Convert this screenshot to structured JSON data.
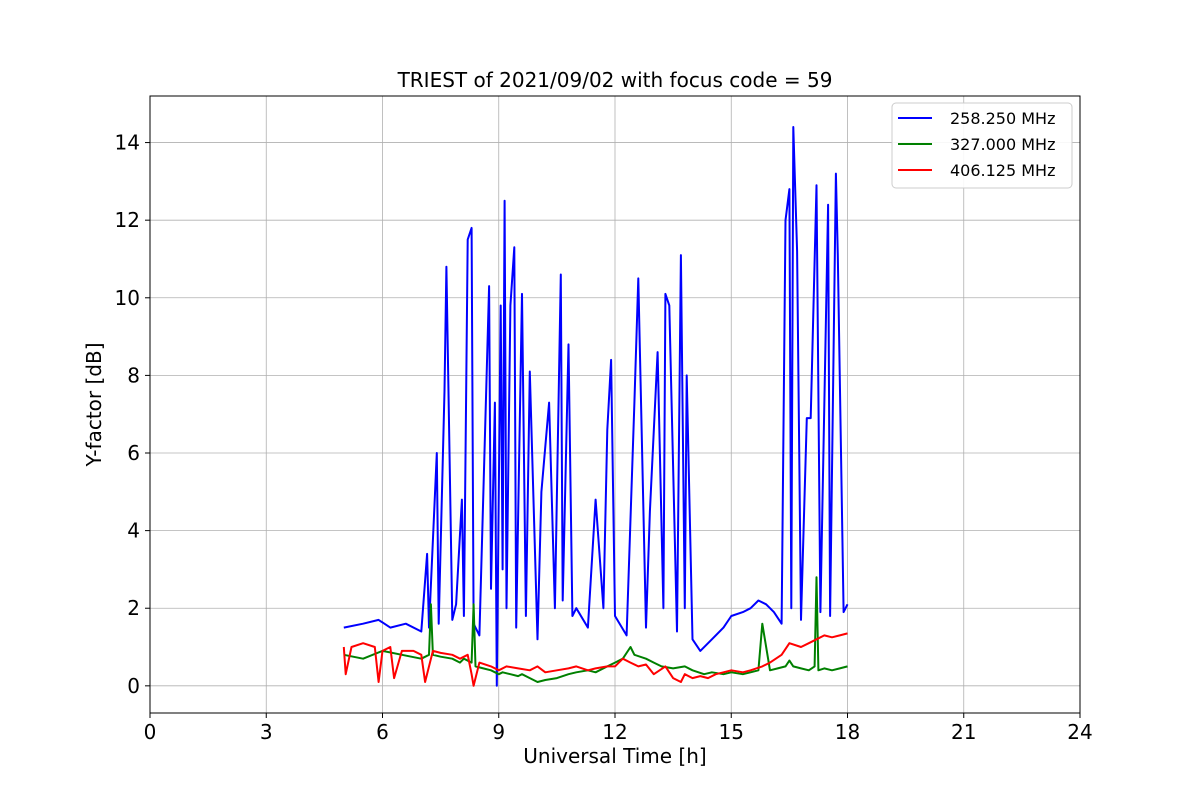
{
  "chart_data": {
    "type": "line",
    "title": "TRIEST of 2021/09/02 with focus code = 59",
    "xlabel": "Universal Time [h]",
    "ylabel": "Y-factor [dB]",
    "xlim": [
      0,
      24
    ],
    "ylim": [
      -0.7,
      15.2
    ],
    "xticks": [
      0,
      3,
      6,
      9,
      12,
      15,
      18,
      21,
      24
    ],
    "yticks": [
      0,
      2,
      4,
      6,
      8,
      10,
      12,
      14
    ],
    "grid": true,
    "legend_position": "top-right",
    "series": [
      {
        "name": "258.250 MHz",
        "color": "#0000ff",
        "x": [
          5.0,
          5.5,
          5.9,
          6.2,
          6.6,
          7.0,
          7.15,
          7.2,
          7.4,
          7.45,
          7.6,
          7.65,
          7.8,
          7.9,
          8.05,
          8.1,
          8.2,
          8.3,
          8.35,
          8.5,
          8.75,
          8.8,
          8.9,
          8.95,
          9.05,
          9.1,
          9.15,
          9.2,
          9.3,
          9.4,
          9.45,
          9.6,
          9.7,
          9.8,
          10.0,
          10.1,
          10.3,
          10.45,
          10.6,
          10.65,
          10.8,
          10.9,
          11.0,
          11.3,
          11.5,
          11.7,
          11.8,
          11.9,
          12.0,
          12.3,
          12.5,
          12.6,
          12.8,
          12.9,
          13.1,
          13.25,
          13.3,
          13.4,
          13.6,
          13.7,
          13.8,
          13.85,
          14.0,
          14.2,
          14.5,
          14.8,
          15.0,
          15.3,
          15.5,
          15.7,
          15.9,
          16.1,
          16.3,
          16.4,
          16.5,
          16.55,
          16.6,
          16.7,
          16.8,
          16.95,
          17.05,
          17.2,
          17.3,
          17.5,
          17.55,
          17.7,
          17.75,
          17.9,
          18.0
        ],
        "y": [
          1.5,
          1.6,
          1.7,
          1.5,
          1.6,
          1.4,
          3.4,
          1.5,
          6.0,
          1.6,
          7.6,
          10.8,
          1.7,
          2.1,
          4.8,
          1.8,
          11.5,
          11.8,
          1.6,
          1.3,
          10.3,
          2.5,
          7.3,
          0.0,
          9.8,
          3.0,
          12.5,
          2.0,
          9.8,
          11.3,
          1.5,
          10.1,
          1.8,
          8.1,
          1.2,
          5.0,
          7.3,
          2.0,
          10.6,
          2.2,
          8.8,
          1.8,
          2.0,
          1.5,
          4.8,
          2.0,
          6.6,
          8.4,
          1.8,
          1.3,
          7.3,
          10.5,
          1.5,
          4.5,
          8.6,
          2.0,
          10.1,
          9.8,
          1.4,
          11.1,
          2.0,
          8.0,
          1.2,
          0.9,
          1.2,
          1.5,
          1.8,
          1.9,
          2.0,
          2.2,
          2.1,
          1.9,
          1.6,
          12.0,
          12.8,
          2.0,
          14.4,
          11.2,
          1.7,
          6.9,
          6.9,
          12.9,
          1.9,
          12.4,
          1.8,
          13.2,
          11.1,
          1.9,
          2.1
        ]
      },
      {
        "name": "327.000 MHz",
        "color": "#008000",
        "x": [
          5.0,
          5.5,
          6.0,
          6.5,
          7.0,
          7.2,
          7.25,
          7.3,
          7.5,
          7.8,
          8.0,
          8.1,
          8.3,
          8.35,
          8.4,
          8.6,
          8.8,
          9.0,
          9.1,
          9.3,
          9.5,
          9.6,
          9.8,
          10.0,
          10.2,
          10.5,
          10.8,
          11.0,
          11.3,
          11.5,
          11.8,
          12.0,
          12.2,
          12.4,
          12.5,
          12.8,
          13.0,
          13.2,
          13.5,
          13.8,
          14.0,
          14.3,
          14.5,
          14.8,
          15.0,
          15.3,
          15.5,
          15.7,
          15.8,
          16.0,
          16.2,
          16.4,
          16.5,
          16.6,
          16.8,
          17.0,
          17.15,
          17.2,
          17.25,
          17.4,
          17.6,
          17.8,
          18.0
        ],
        "y": [
          0.8,
          0.7,
          0.9,
          0.8,
          0.7,
          0.8,
          2.1,
          0.8,
          0.75,
          0.7,
          0.6,
          0.7,
          0.6,
          2.1,
          0.5,
          0.45,
          0.4,
          0.3,
          0.35,
          0.3,
          0.25,
          0.3,
          0.2,
          0.1,
          0.15,
          0.2,
          0.3,
          0.35,
          0.4,
          0.35,
          0.5,
          0.6,
          0.7,
          1.0,
          0.8,
          0.7,
          0.6,
          0.5,
          0.45,
          0.5,
          0.4,
          0.3,
          0.35,
          0.3,
          0.35,
          0.3,
          0.35,
          0.4,
          1.6,
          0.4,
          0.45,
          0.5,
          0.65,
          0.5,
          0.45,
          0.4,
          0.5,
          2.8,
          0.4,
          0.45,
          0.4,
          0.45,
          0.5
        ]
      },
      {
        "name": "406.125 MHz",
        "color": "#ff0000",
        "x": [
          5.0,
          5.05,
          5.2,
          5.5,
          5.8,
          5.9,
          6.0,
          6.2,
          6.3,
          6.5,
          6.8,
          7.0,
          7.1,
          7.3,
          7.5,
          7.8,
          8.0,
          8.2,
          8.3,
          8.35,
          8.5,
          8.8,
          9.0,
          9.2,
          9.5,
          9.8,
          10.0,
          10.2,
          10.5,
          10.8,
          11.0,
          11.3,
          11.5,
          11.8,
          12.0,
          12.2,
          12.4,
          12.6,
          12.8,
          13.0,
          13.3,
          13.5,
          13.7,
          13.8,
          14.0,
          14.2,
          14.4,
          14.6,
          14.8,
          15.0,
          15.3,
          15.5,
          15.8,
          16.0,
          16.3,
          16.5,
          16.8,
          17.0,
          17.2,
          17.4,
          17.6,
          17.8,
          18.0
        ],
        "y": [
          1.0,
          0.3,
          1.0,
          1.1,
          1.0,
          0.1,
          0.9,
          1.0,
          0.2,
          0.9,
          0.9,
          0.8,
          0.1,
          0.9,
          0.85,
          0.8,
          0.7,
          0.8,
          0.3,
          0.0,
          0.6,
          0.5,
          0.4,
          0.5,
          0.45,
          0.4,
          0.5,
          0.35,
          0.4,
          0.45,
          0.5,
          0.4,
          0.45,
          0.5,
          0.5,
          0.7,
          0.6,
          0.5,
          0.55,
          0.3,
          0.5,
          0.2,
          0.1,
          0.3,
          0.2,
          0.25,
          0.2,
          0.3,
          0.35,
          0.4,
          0.35,
          0.4,
          0.5,
          0.6,
          0.8,
          1.1,
          1.0,
          1.1,
          1.2,
          1.3,
          1.25,
          1.3,
          1.35
        ]
      }
    ]
  }
}
